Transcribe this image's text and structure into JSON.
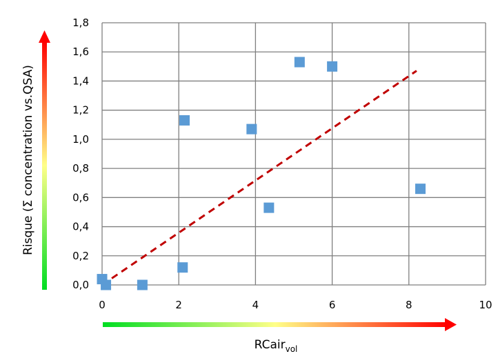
{
  "chart_data": {
    "type": "scatter",
    "title": "",
    "xlabel": {
      "main": "RCair",
      "subscript": "vol"
    },
    "ylabel": "Risque  (Σ concentration vs.QSA)",
    "xlim": [
      0,
      10
    ],
    "ylim": [
      0,
      1.8
    ],
    "x_ticks": [
      0,
      2,
      4,
      6,
      8,
      10
    ],
    "x_tick_labels": [
      "0",
      "2",
      "4",
      "6",
      "8",
      "10"
    ],
    "y_ticks": [
      0,
      0.2,
      0.4,
      0.6,
      0.8,
      1.0,
      1.2,
      1.4,
      1.6,
      1.8
    ],
    "y_tick_labels": [
      "0,0",
      "0,2",
      "0,4",
      "0,6",
      "0,8",
      "1,0",
      "1,2",
      "1,4",
      "1,6",
      "1,8"
    ],
    "grid": true,
    "series": [
      {
        "points": [
          {
            "x": 0.0,
            "y": 0.04
          },
          {
            "x": 0.1,
            "y": 0.0
          },
          {
            "x": 1.05,
            "y": 0.0
          },
          {
            "x": 2.1,
            "y": 0.12
          },
          {
            "x": 2.15,
            "y": 1.13
          },
          {
            "x": 3.9,
            "y": 1.07
          },
          {
            "x": 4.35,
            "y": 0.53
          },
          {
            "x": 5.15,
            "y": 1.53
          },
          {
            "x": 6.0,
            "y": 1.5
          },
          {
            "x": 8.3,
            "y": 0.66
          }
        ],
        "color": "#5b9bd5",
        "marker": "square"
      }
    ],
    "trendline": {
      "from": {
        "x": 0.0,
        "y": 0.0
      },
      "to": {
        "x": 8.2,
        "y": 1.47
      },
      "color": "#c00000",
      "style": "dashed"
    },
    "arrow_gradient": [
      "#00dd22",
      "#ffff88",
      "#ff0000"
    ]
  }
}
